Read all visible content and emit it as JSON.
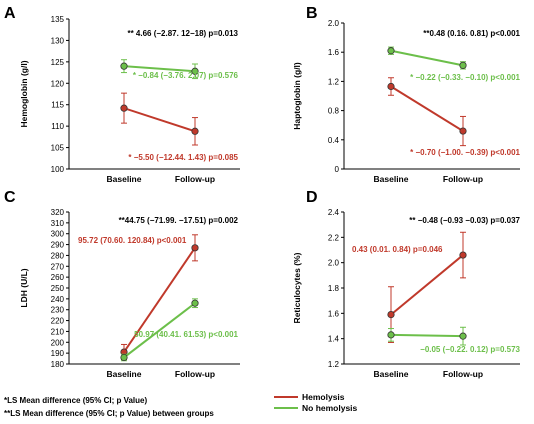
{
  "colors": {
    "hemolysis": "#c0392b",
    "no_hemolysis": "#6cbf4a",
    "between": "#000000"
  },
  "legend": [
    {
      "name": "Hemolysis",
      "color": "#c0392b"
    },
    {
      "name": "No hemolysis",
      "color": "#6cbf4a"
    }
  ],
  "footnotes": [
    "*LS Mean difference (95% CI; p Value)",
    "**LS Mean difference (95% CI; p Value) between groups"
  ],
  "chart_data": [
    {
      "panel": "A",
      "type": "line",
      "categories": [
        "Baseline",
        "Follow-up"
      ],
      "ylabel": "Hemoglobin (g/l)",
      "ylim": [
        100,
        135
      ],
      "yticks": [
        "100",
        "105",
        "110",
        "115",
        "120",
        "125",
        "130",
        "135"
      ],
      "series": [
        {
          "name": "Hemolysis",
          "values": [
            114.2,
            108.8
          ],
          "error": [
            3.5,
            3.2
          ]
        },
        {
          "name": "No hemolysis",
          "values": [
            124.0,
            122.8
          ],
          "error": [
            1.5,
            1.7
          ]
        }
      ],
      "annotations": [
        {
          "text": "** 4.66 (−2.87. 12−18) p=0.013",
          "series": "between"
        },
        {
          "text": "* −0.84 (−3.76. 2.07) p=0.576",
          "series": "No hemolysis"
        },
        {
          "text": "* −5.50 (−12.44. 1.43) p=0.085",
          "series": "Hemolysis"
        }
      ]
    },
    {
      "panel": "B",
      "type": "line",
      "categories": [
        "Baseline",
        "Follow-up"
      ],
      "ylabel": "Haptoglobin (g/l)",
      "ylim": [
        0,
        2.0
      ],
      "yticks": [
        "0",
        "0.4",
        "0.8",
        "1.2",
        "1.6",
        "2.0"
      ],
      "series": [
        {
          "name": "Hemolysis",
          "values": [
            1.13,
            0.52
          ],
          "error": [
            0.12,
            0.2
          ]
        },
        {
          "name": "No hemolysis",
          "values": [
            1.62,
            1.42
          ],
          "error": [
            0.05,
            0.05
          ]
        }
      ],
      "annotations": [
        {
          "text": "**0.48 (0.16.  0.81) p<0.001",
          "series": "between"
        },
        {
          "text": "* −0.22 (−0.33. −0.10) p<0.001",
          "series": "No hemolysis"
        },
        {
          "text": "* −0.70 (−1.00. −0.39) p<0.001",
          "series": "Hemolysis"
        }
      ]
    },
    {
      "panel": "C",
      "type": "line",
      "categories": [
        "Baseline",
        "Follow-up"
      ],
      "ylabel": "LDH (U/L)",
      "ylim": [
        180,
        320
      ],
      "yticks": [
        "180",
        "190",
        "200",
        "210",
        "220",
        "230",
        "240",
        "250",
        "260",
        "270",
        "280",
        "290",
        "300",
        "310",
        "320"
      ],
      "series": [
        {
          "name": "Hemolysis",
          "values": [
            191,
            287
          ],
          "error": [
            7,
            12
          ]
        },
        {
          "name": "No hemolysis",
          "values": [
            186,
            236
          ],
          "error": [
            3,
            4
          ]
        }
      ],
      "annotations": [
        {
          "text": "**44.75 (−71.99. −17.51) p=0.002",
          "series": "between"
        },
        {
          "text": "95.72 (70.60. 120.84) p<0.001",
          "series": "Hemolysis"
        },
        {
          "text": "50.97 (40.41. 61.53) p<0.001",
          "series": "No hemolysis"
        }
      ]
    },
    {
      "panel": "D",
      "type": "line",
      "categories": [
        "Baseline",
        "Follow-up"
      ],
      "ylabel": "Reticulocytes (%)",
      "ylim": [
        1.2,
        2.4
      ],
      "yticks": [
        "1.2",
        "1.4",
        "1.6",
        "1.8",
        "2.0",
        "2.2",
        "2.4"
      ],
      "series": [
        {
          "name": "Hemolysis",
          "values": [
            1.59,
            2.06
          ],
          "error": [
            0.22,
            0.18
          ]
        },
        {
          "name": "No hemolysis",
          "values": [
            1.43,
            1.42
          ],
          "error": [
            0.05,
            0.07
          ]
        }
      ],
      "annotations": [
        {
          "text": "** −0.48 (−0.93  −0.03) p=0.037",
          "series": "between"
        },
        {
          "text": "0.43 (0.01. 0.84) p=0.046",
          "series": "Hemolysis"
        },
        {
          "text": "−0.05 (−0.22. 0.12) p=0.573",
          "series": "No hemolysis"
        }
      ]
    }
  ]
}
